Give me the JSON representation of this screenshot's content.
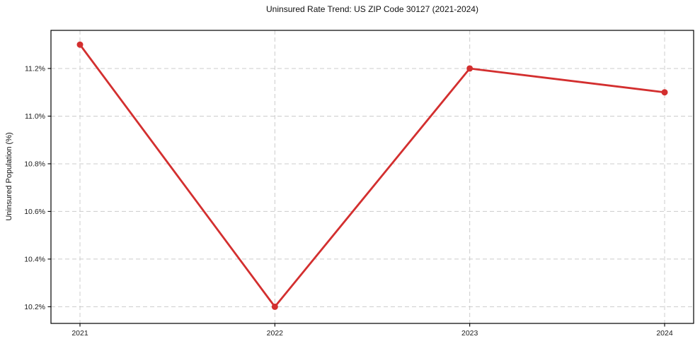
{
  "chart_data": {
    "type": "line",
    "title": "Uninsured Rate Trend: US ZIP Code 30127 (2021-2024)",
    "xlabel": "",
    "ylabel": "Uninsured Population (%)",
    "x_labels": [
      "2021",
      "2022",
      "2023",
      "2024"
    ],
    "series": [
      {
        "name": "Uninsured rate",
        "values": [
          11.3,
          10.2,
          11.2,
          11.1
        ]
      }
    ],
    "ylim": [
      10.13,
      11.36
    ],
    "yticks": [
      10.2,
      10.4,
      10.6,
      10.8,
      11.0,
      11.2
    ],
    "ytick_labels": [
      "10.2%",
      "10.4%",
      "10.6%",
      "10.8%",
      "11.0%",
      "11.2%"
    ],
    "grid": "both-dashed",
    "legend": "none",
    "colors": {
      "line": "#d32f2f",
      "marker": "#d32f2f",
      "grid": "#cccccc",
      "axis": "#000000",
      "text": "#1a1a1a",
      "background": "#ffffff"
    }
  }
}
